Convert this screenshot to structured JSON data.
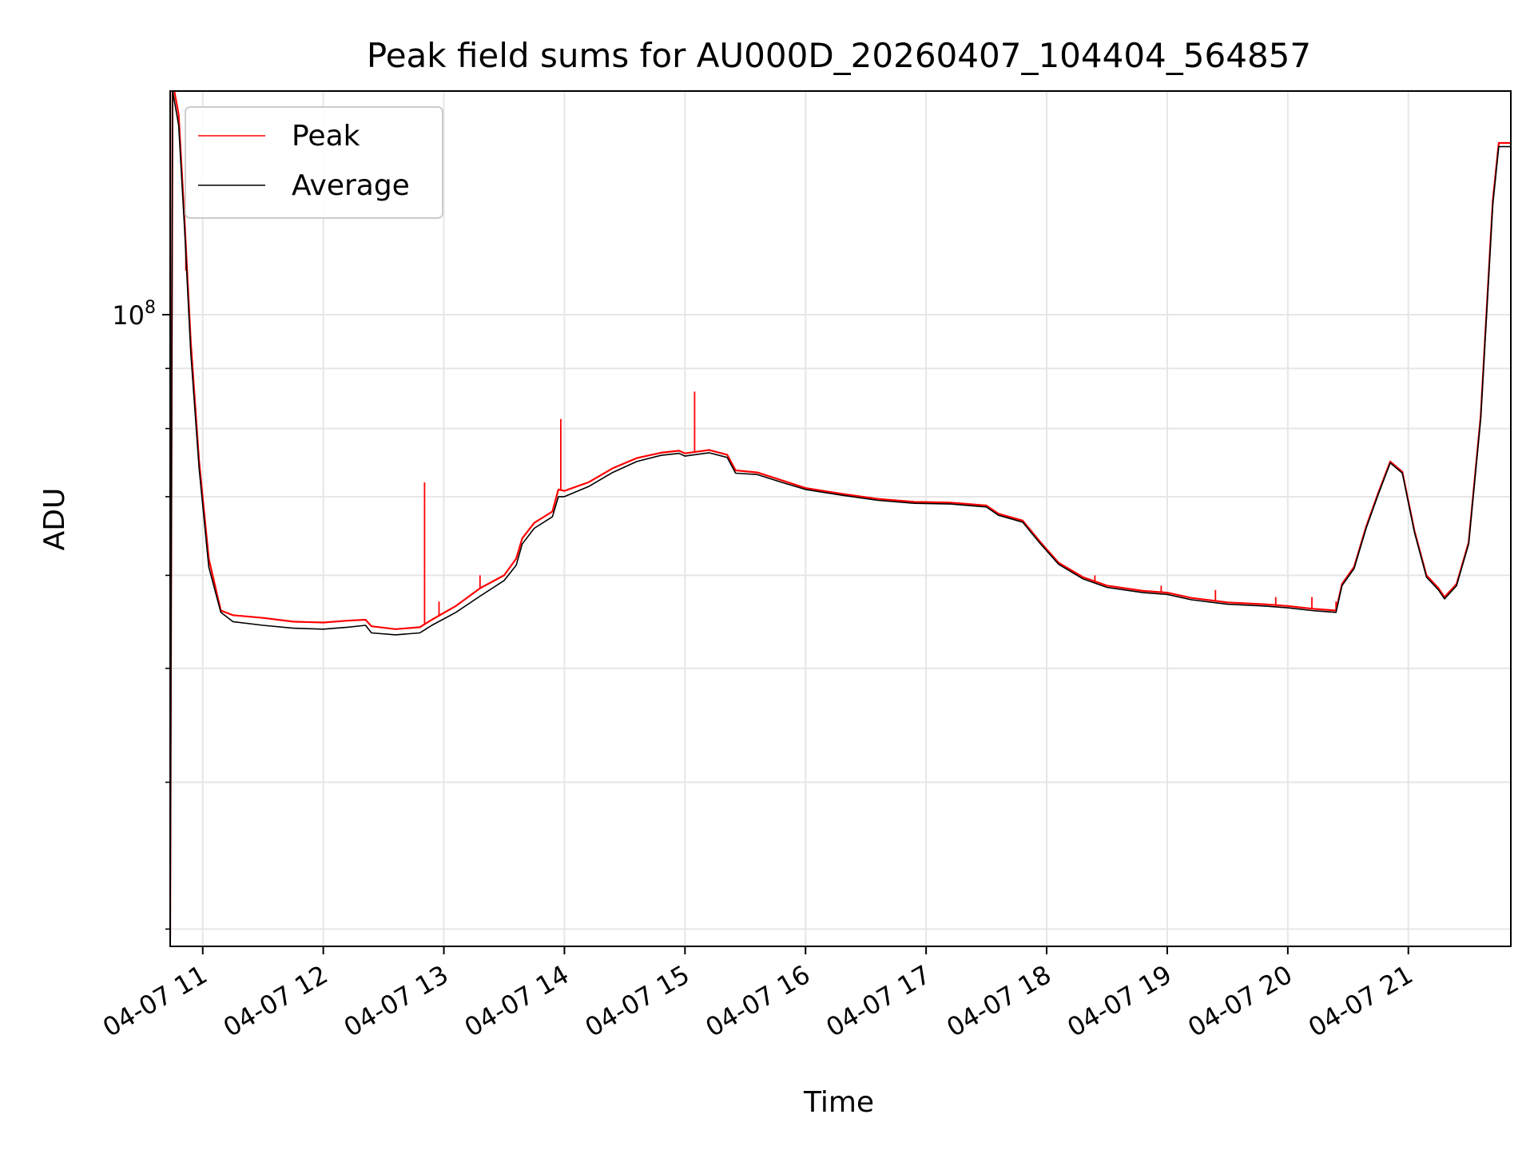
{
  "chart_data": {
    "type": "line",
    "title": "Peak field sums for AU000D_20260407_104404_564857",
    "xlabel": "Time",
    "ylabel": "ADU",
    "yscale": "log",
    "grid": true,
    "legend_position": "top-left",
    "xlim": [
      10.73,
      21.85
    ],
    "ylim": [
      29000000,
      155000000
    ],
    "x_ticks": [
      {
        "value": 11,
        "label": "04-07 11"
      },
      {
        "value": 12,
        "label": "04-07 12"
      },
      {
        "value": 13,
        "label": "04-07 13"
      },
      {
        "value": 14,
        "label": "04-07 14"
      },
      {
        "value": 15,
        "label": "04-07 15"
      },
      {
        "value": 16,
        "label": "04-07 16"
      },
      {
        "value": 17,
        "label": "04-07 17"
      },
      {
        "value": 18,
        "label": "04-07 18"
      },
      {
        "value": 19,
        "label": "04-07 19"
      },
      {
        "value": 20,
        "label": "04-07 20"
      },
      {
        "value": 21,
        "label": "04-07 21"
      }
    ],
    "y_major_ticks": [
      {
        "value": 100000000,
        "base": "10",
        "exponent": "8"
      }
    ],
    "y_minor_ticks": [
      30000000,
      40000000,
      50000000,
      60000000,
      70000000,
      80000000,
      90000000,
      200000000
    ],
    "series": [
      {
        "name": "Peak",
        "color": "#ff0000",
        "points": [
          [
            10.73,
            29500000
          ],
          [
            10.75,
            158000000
          ],
          [
            10.8,
            148000000
          ],
          [
            10.85,
            120000000
          ],
          [
            10.9,
            95000000
          ],
          [
            10.97,
            75000000
          ],
          [
            11.05,
            62000000
          ],
          [
            11.15,
            56000000
          ],
          [
            11.25,
            55500000
          ],
          [
            11.5,
            55200000
          ],
          [
            11.75,
            54800000
          ],
          [
            12.0,
            54700000
          ],
          [
            12.2,
            54900000
          ],
          [
            12.35,
            55000000
          ],
          [
            12.4,
            54300000
          ],
          [
            12.6,
            54000000
          ],
          [
            12.8,
            54200000
          ],
          [
            12.85,
            54600000
          ],
          [
            12.9,
            55000000
          ],
          [
            13.1,
            56500000
          ],
          [
            13.3,
            58500000
          ],
          [
            13.5,
            60000000
          ],
          [
            13.6,
            62000000
          ],
          [
            13.65,
            64500000
          ],
          [
            13.75,
            66500000
          ],
          [
            13.9,
            68000000
          ],
          [
            13.95,
            71000000
          ],
          [
            14.0,
            70800000
          ],
          [
            14.2,
            72000000
          ],
          [
            14.4,
            74000000
          ],
          [
            14.6,
            75500000
          ],
          [
            14.8,
            76300000
          ],
          [
            14.95,
            76600000
          ],
          [
            15.0,
            76200000
          ],
          [
            15.2,
            76700000
          ],
          [
            15.35,
            76000000
          ],
          [
            15.42,
            73700000
          ],
          [
            15.6,
            73400000
          ],
          [
            15.8,
            72300000
          ],
          [
            16.0,
            71200000
          ],
          [
            16.3,
            70400000
          ],
          [
            16.6,
            69700000
          ],
          [
            16.9,
            69300000
          ],
          [
            17.2,
            69200000
          ],
          [
            17.5,
            68800000
          ],
          [
            17.6,
            67700000
          ],
          [
            17.8,
            66800000
          ],
          [
            17.95,
            64000000
          ],
          [
            18.1,
            61500000
          ],
          [
            18.3,
            59800000
          ],
          [
            18.5,
            58800000
          ],
          [
            18.8,
            58200000
          ],
          [
            19.0,
            58000000
          ],
          [
            19.2,
            57400000
          ],
          [
            19.5,
            56900000
          ],
          [
            19.8,
            56700000
          ],
          [
            20.0,
            56500000
          ],
          [
            20.2,
            56200000
          ],
          [
            20.4,
            56000000
          ],
          [
            20.45,
            59000000
          ],
          [
            20.55,
            61000000
          ],
          [
            20.65,
            66000000
          ],
          [
            20.75,
            70500000
          ],
          [
            20.85,
            75000000
          ],
          [
            20.95,
            73500000
          ],
          [
            21.05,
            65500000
          ],
          [
            21.15,
            60000000
          ],
          [
            21.25,
            58500000
          ],
          [
            21.3,
            57500000
          ],
          [
            21.4,
            59000000
          ],
          [
            21.5,
            64000000
          ],
          [
            21.6,
            82000000
          ],
          [
            21.7,
            125000000
          ],
          [
            21.75,
            140000000
          ],
          [
            21.85,
            140000000
          ]
        ],
        "spikes": [
          [
            10.86,
            109000000
          ],
          [
            12.84,
            72000000
          ],
          [
            12.96,
            57000000
          ],
          [
            13.3,
            60000000
          ],
          [
            13.97,
            81500000
          ],
          [
            15.08,
            86000000
          ],
          [
            18.4,
            60000000
          ],
          [
            18.95,
            58800000
          ],
          [
            19.4,
            58300000
          ],
          [
            19.9,
            57500000
          ],
          [
            20.2,
            57500000
          ],
          [
            20.4,
            57000000
          ]
        ]
      },
      {
        "name": "Average",
        "color": "#000000",
        "points": [
          [
            10.73,
            29000000
          ],
          [
            10.75,
            155000000
          ],
          [
            10.8,
            145000000
          ],
          [
            10.85,
            118000000
          ],
          [
            10.9,
            93000000
          ],
          [
            10.97,
            74000000
          ],
          [
            11.05,
            61000000
          ],
          [
            11.15,
            55800000
          ],
          [
            11.25,
            54800000
          ],
          [
            11.5,
            54400000
          ],
          [
            11.75,
            54100000
          ],
          [
            12.0,
            54000000
          ],
          [
            12.2,
            54200000
          ],
          [
            12.35,
            54400000
          ],
          [
            12.4,
            53600000
          ],
          [
            12.6,
            53400000
          ],
          [
            12.8,
            53600000
          ],
          [
            12.85,
            54000000
          ],
          [
            12.9,
            54400000
          ],
          [
            13.1,
            55800000
          ],
          [
            13.3,
            57600000
          ],
          [
            13.5,
            59400000
          ],
          [
            13.6,
            61200000
          ],
          [
            13.65,
            63800000
          ],
          [
            13.75,
            65800000
          ],
          [
            13.9,
            67300000
          ],
          [
            13.95,
            70000000
          ],
          [
            14.0,
            70000000
          ],
          [
            14.2,
            71400000
          ],
          [
            14.4,
            73400000
          ],
          [
            14.6,
            75000000
          ],
          [
            14.8,
            75900000
          ],
          [
            14.95,
            76200000
          ],
          [
            15.0,
            75800000
          ],
          [
            15.2,
            76300000
          ],
          [
            15.35,
            75600000
          ],
          [
            15.42,
            73300000
          ],
          [
            15.6,
            73100000
          ],
          [
            15.8,
            72000000
          ],
          [
            16.0,
            71000000
          ],
          [
            16.3,
            70200000
          ],
          [
            16.6,
            69500000
          ],
          [
            16.9,
            69100000
          ],
          [
            17.2,
            69000000
          ],
          [
            17.5,
            68600000
          ],
          [
            17.6,
            67500000
          ],
          [
            17.8,
            66600000
          ],
          [
            17.95,
            63800000
          ],
          [
            18.1,
            61300000
          ],
          [
            18.3,
            59600000
          ],
          [
            18.5,
            58600000
          ],
          [
            18.8,
            58000000
          ],
          [
            19.0,
            57800000
          ],
          [
            19.2,
            57200000
          ],
          [
            19.5,
            56700000
          ],
          [
            19.8,
            56500000
          ],
          [
            20.0,
            56300000
          ],
          [
            20.2,
            56000000
          ],
          [
            20.4,
            55800000
          ],
          [
            20.45,
            58800000
          ],
          [
            20.55,
            60800000
          ],
          [
            20.65,
            65800000
          ],
          [
            20.75,
            70300000
          ],
          [
            20.85,
            74800000
          ],
          [
            20.95,
            73300000
          ],
          [
            21.05,
            65300000
          ],
          [
            21.15,
            59800000
          ],
          [
            21.25,
            58300000
          ],
          [
            21.3,
            57300000
          ],
          [
            21.4,
            58800000
          ],
          [
            21.5,
            63800000
          ],
          [
            21.6,
            81500000
          ],
          [
            21.7,
            124000000
          ],
          [
            21.75,
            139000000
          ],
          [
            21.85,
            139000000
          ]
        ]
      }
    ]
  }
}
